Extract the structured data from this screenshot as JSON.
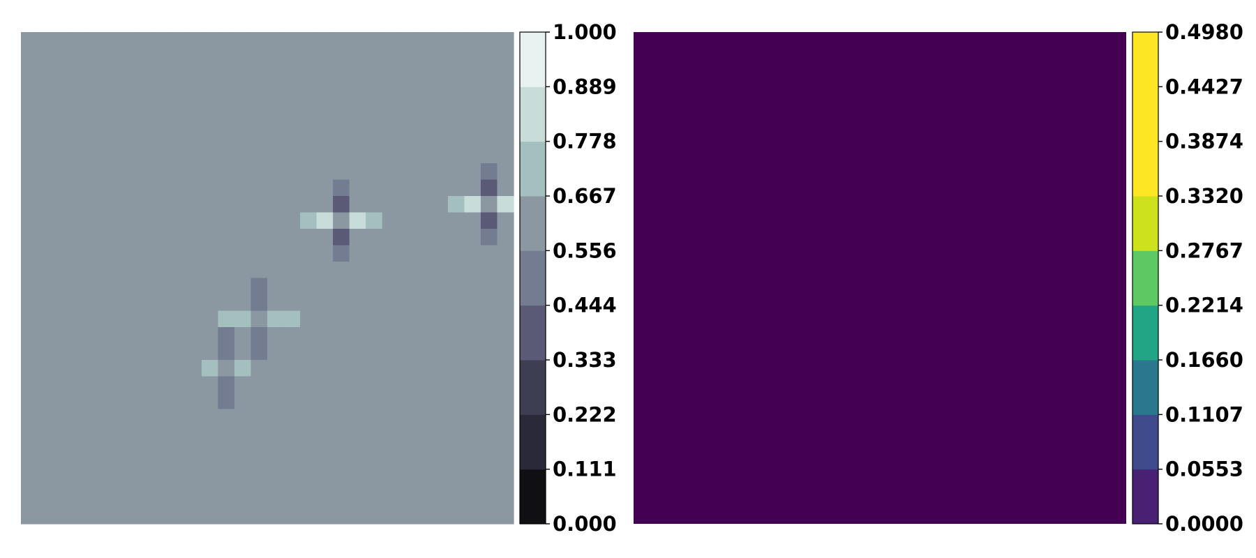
{
  "chart_data": [
    {
      "type": "heatmap",
      "colormap": "bone",
      "colorbar": {
        "ticks": [
          "0.000",
          "0.111",
          "0.222",
          "0.333",
          "0.444",
          "0.556",
          "0.667",
          "0.778",
          "0.889",
          "1.000"
        ],
        "colors": [
          "#0f0f14",
          "#29293a",
          "#3e3e53",
          "#5a5a76",
          "#737c90",
          "#8b97a1",
          "#a3bfbe",
          "#c8dcda",
          "#e8f2f1"
        ]
      },
      "background_value": 0.6,
      "features": [
        {
          "col": 14,
          "row": 17,
          "strength": 0.5
        },
        {
          "col": 19,
          "row": 11,
          "strength": 1.0
        },
        {
          "col": 28,
          "row": 10,
          "strength": 1.0
        },
        {
          "col": 12,
          "row": 20,
          "strength": 0.35
        }
      ],
      "grid_cols": 30,
      "grid_rows": 30
    },
    {
      "type": "heatmap",
      "colormap": "viridis",
      "uniform_value": 0.0,
      "uniform_color": "#440154",
      "colorbar": {
        "ticks": [
          "0.0000",
          "0.0553",
          "0.1107",
          "0.1660",
          "0.2214",
          "0.2767",
          "0.3320",
          "0.3874",
          "0.4427",
          "0.4980"
        ],
        "colors": [
          "#482173",
          "#3e4a89",
          "#2a788e",
          "#21a585",
          "#5ec962",
          "#cde11d",
          "#fde725",
          "#fde725",
          "#fde725"
        ]
      }
    }
  ]
}
